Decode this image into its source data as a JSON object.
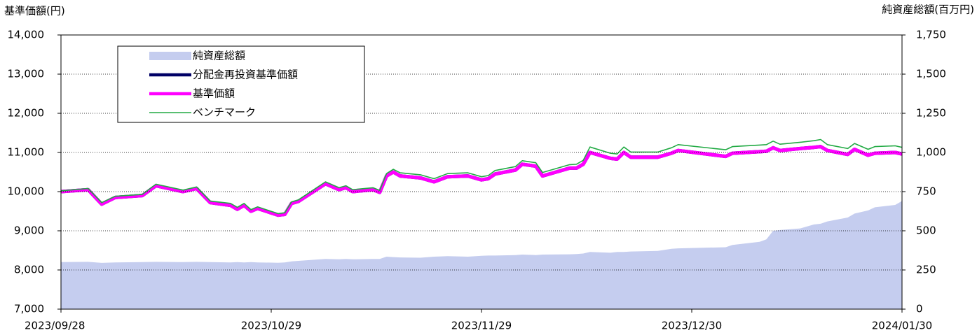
{
  "chart_data": {
    "type": "line",
    "y_label": "基準価額(円)",
    "y2_label": "純資産総額(百万円)",
    "x": [
      "2023/09/28",
      "2023/10/02",
      "2023/10/04",
      "2023/10/06",
      "2023/10/10",
      "2023/10/12",
      "2023/10/16",
      "2023/10/18",
      "2023/10/20",
      "2023/10/23",
      "2023/10/24",
      "2023/10/25",
      "2023/10/26",
      "2023/10/27",
      "2023/10/30",
      "2023/10/31",
      "2023/11/01",
      "2023/11/02",
      "2023/11/06",
      "2023/11/08",
      "2023/11/09",
      "2023/11/10",
      "2023/11/13",
      "2023/11/14",
      "2023/11/15",
      "2023/11/16",
      "2023/11/17",
      "2023/11/20",
      "2023/11/22",
      "2023/11/24",
      "2023/11/27",
      "2023/11/29",
      "2023/11/30",
      "2023/12/01",
      "2023/12/04",
      "2023/12/05",
      "2023/12/07",
      "2023/12/08",
      "2023/12/12",
      "2023/12/13",
      "2023/12/14",
      "2023/12/15",
      "2023/12/18",
      "2023/12/19",
      "2023/12/20",
      "2023/12/21",
      "2023/12/25",
      "2023/12/27",
      "2023/12/28",
      "2024/01/04",
      "2024/01/05",
      "2024/01/09",
      "2024/01/10",
      "2024/01/11",
      "2024/01/12",
      "2024/01/15",
      "2024/01/17",
      "2024/01/18",
      "2024/01/19",
      "2024/01/22",
      "2024/01/23",
      "2024/01/25",
      "2024/01/26",
      "2024/01/29",
      "2024/01/30"
    ],
    "series": [
      {
        "name": "純資産総額",
        "kind": "area",
        "axis": "y2",
        "color": "#c5cdef",
        "values": [
          300,
          302,
          295,
          298,
          300,
          302,
          300,
          302,
          300,
          298,
          300,
          298,
          300,
          298,
          296,
          298,
          305,
          308,
          320,
          318,
          320,
          318,
          320,
          320,
          335,
          332,
          330,
          328,
          335,
          338,
          335,
          340,
          342,
          342,
          345,
          348,
          345,
          348,
          350,
          352,
          355,
          365,
          360,
          365,
          365,
          368,
          372,
          385,
          388,
          395,
          410,
          430,
          445,
          500,
          505,
          515,
          540,
          545,
          560,
          585,
          610,
          630,
          650,
          665,
          690
        ]
      },
      {
        "name": "分配金再投資基準価額",
        "color": "#000066",
        "values": [
          10000,
          10050,
          9680,
          9850,
          9900,
          10150,
          10000,
          10080,
          9720,
          9650,
          9550,
          9650,
          9500,
          9570,
          9400,
          9420,
          9700,
          9750,
          10200,
          10050,
          10100,
          10000,
          10050,
          9980,
          10400,
          10500,
          10400,
          10350,
          10250,
          10380,
          10400,
          10300,
          10330,
          10450,
          10550,
          10700,
          10650,
          10400,
          10600,
          10600,
          10700,
          11000,
          10850,
          10830,
          11000,
          10880,
          10880,
          10980,
          11050,
          10900,
          10980,
          11020,
          11030,
          11120,
          11050,
          11100,
          11130,
          11150,
          11050,
          10950,
          11080,
          10930,
          10980,
          11000,
          10960
        ]
      },
      {
        "name": "基準価額",
        "color": "#ff00ff",
        "values": [
          10000,
          10050,
          9680,
          9850,
          9900,
          10150,
          10000,
          10080,
          9720,
          9650,
          9550,
          9650,
          9500,
          9570,
          9400,
          9420,
          9700,
          9750,
          10200,
          10050,
          10100,
          10000,
          10050,
          9980,
          10400,
          10500,
          10400,
          10350,
          10250,
          10380,
          10400,
          10300,
          10330,
          10450,
          10550,
          10700,
          10650,
          10400,
          10600,
          10600,
          10700,
          11000,
          10850,
          10830,
          11000,
          10880,
          10880,
          10980,
          11050,
          10900,
          10980,
          11020,
          11030,
          11120,
          11050,
          11100,
          11130,
          11150,
          11050,
          10950,
          11080,
          10930,
          10980,
          11000,
          10960
        ]
      },
      {
        "name": "ベンチマーク",
        "color": "#22aa44",
        "values": [
          10020,
          10080,
          9720,
          9880,
          9930,
          10190,
          10040,
          10120,
          9760,
          9700,
          9600,
          9700,
          9540,
          9610,
          9440,
          9460,
          9740,
          9790,
          10250,
          10100,
          10150,
          10050,
          10100,
          10030,
          10460,
          10570,
          10480,
          10430,
          10330,
          10460,
          10480,
          10380,
          10410,
          10540,
          10640,
          10790,
          10740,
          10490,
          10690,
          10700,
          10800,
          11140,
          10980,
          10960,
          11140,
          11010,
          11010,
          11120,
          11200,
          11070,
          11150,
          11190,
          11200,
          11290,
          11210,
          11260,
          11300,
          11330,
          11200,
          11100,
          11230,
          11080,
          11150,
          11170,
          11130
        ]
      }
    ],
    "xlim": [
      "2023/09/28",
      "2024/01/30"
    ],
    "xticks": [
      "2023/09/28",
      "2023/10/29",
      "2023/11/29",
      "2023/12/30",
      "2024/01/30"
    ],
    "ylim": [
      7000,
      14000
    ],
    "yticks": [
      {
        "value": 7000,
        "label": "7,000"
      },
      {
        "value": 8000,
        "label": "8,000"
      },
      {
        "value": 9000,
        "label": "9,000"
      },
      {
        "value": 10000,
        "label": "10,000"
      },
      {
        "value": 11000,
        "label": "11,000"
      },
      {
        "value": 12000,
        "label": "12,000"
      },
      {
        "value": 13000,
        "label": "13,000"
      },
      {
        "value": 14000,
        "label": "14,000"
      }
    ],
    "y2lim": [
      0,
      1750
    ],
    "y2ticks": [
      0,
      250,
      500,
      750,
      {
        "value": 1000,
        "label": "1,000"
      },
      {
        "value": 1250,
        "label": "1,250"
      },
      {
        "value": 1500,
        "label": "1,500"
      },
      {
        "value": 1750,
        "label": "1,750"
      }
    ],
    "grid": true,
    "legend": "upper left"
  }
}
